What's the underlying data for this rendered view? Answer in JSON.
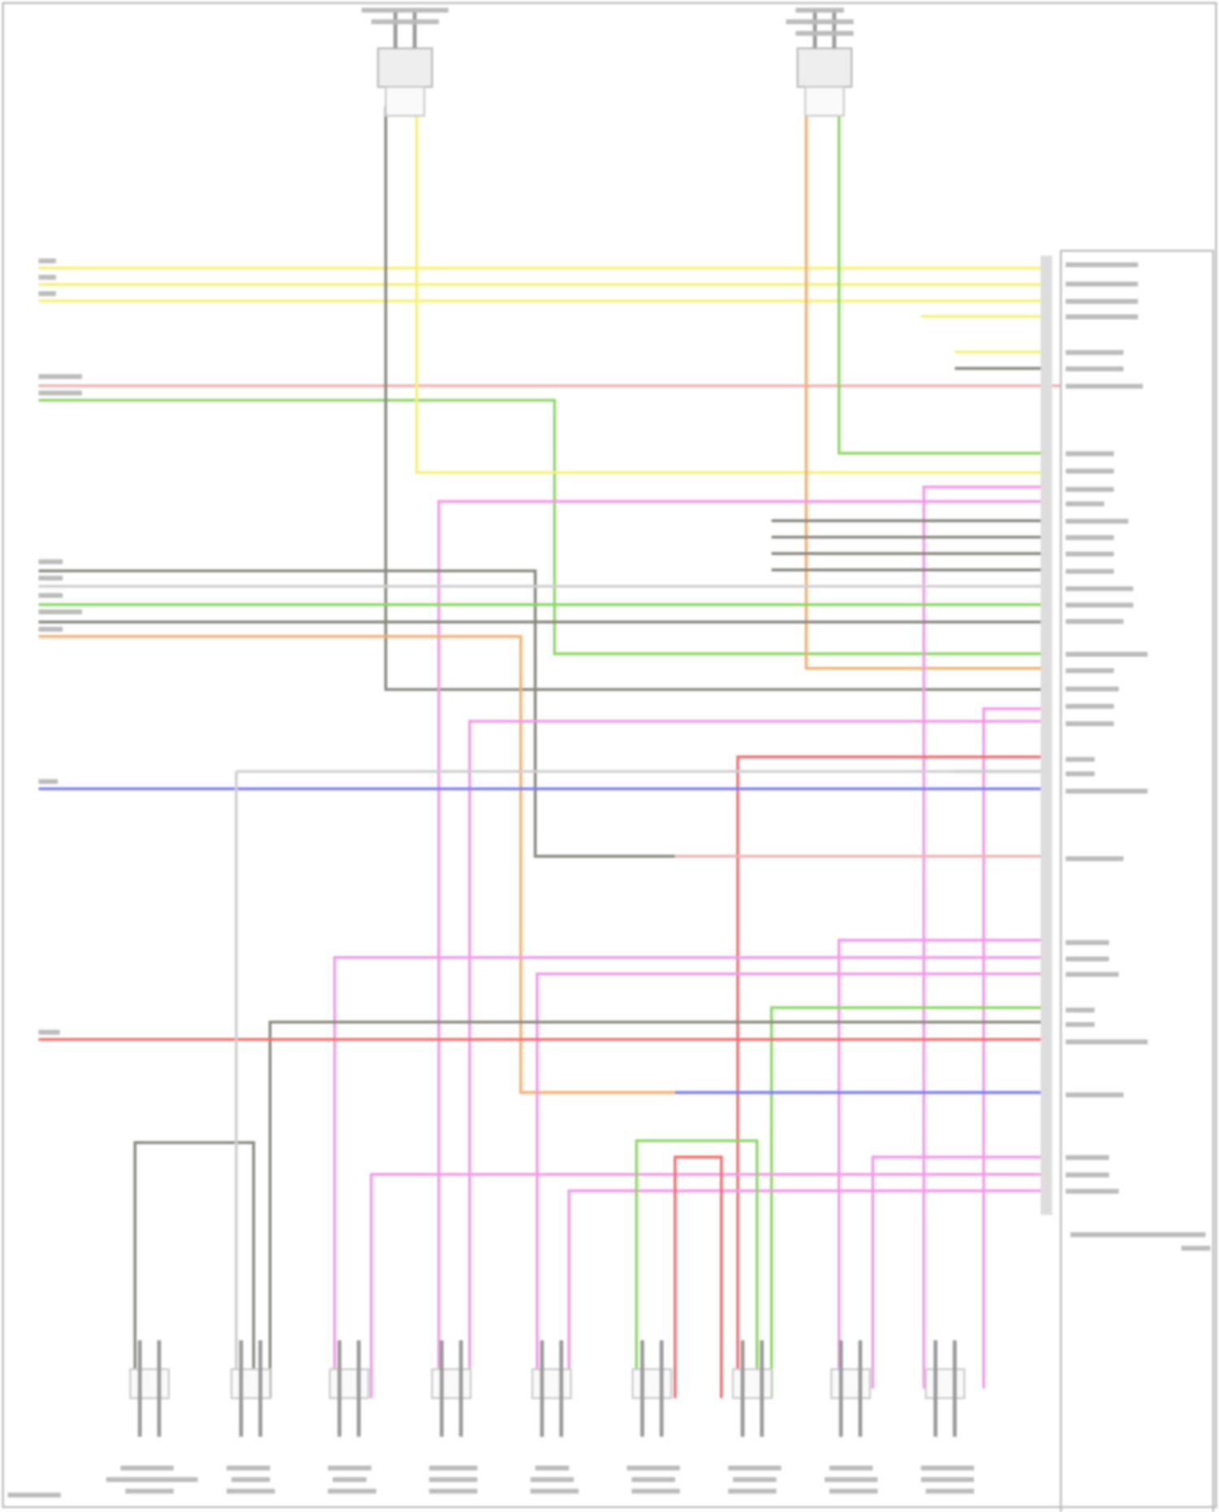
{
  "diagram": {
    "type": "wiring-diagram",
    "text_legible": false,
    "wire_colors": {
      "yellow": "#f4f27a",
      "pink": "#f29be8",
      "green": "#8fd86a",
      "orange": "#f5b073",
      "gray": "#8a8a80",
      "light_gray": "#d0d0d0",
      "red": "#f27070",
      "blue": "#7f7ff2",
      "rose": "#f2b4b4",
      "violet": "#c09af2"
    },
    "top_speaker_count": 2,
    "bottom_speaker_count": 9,
    "module_count": 1
  }
}
